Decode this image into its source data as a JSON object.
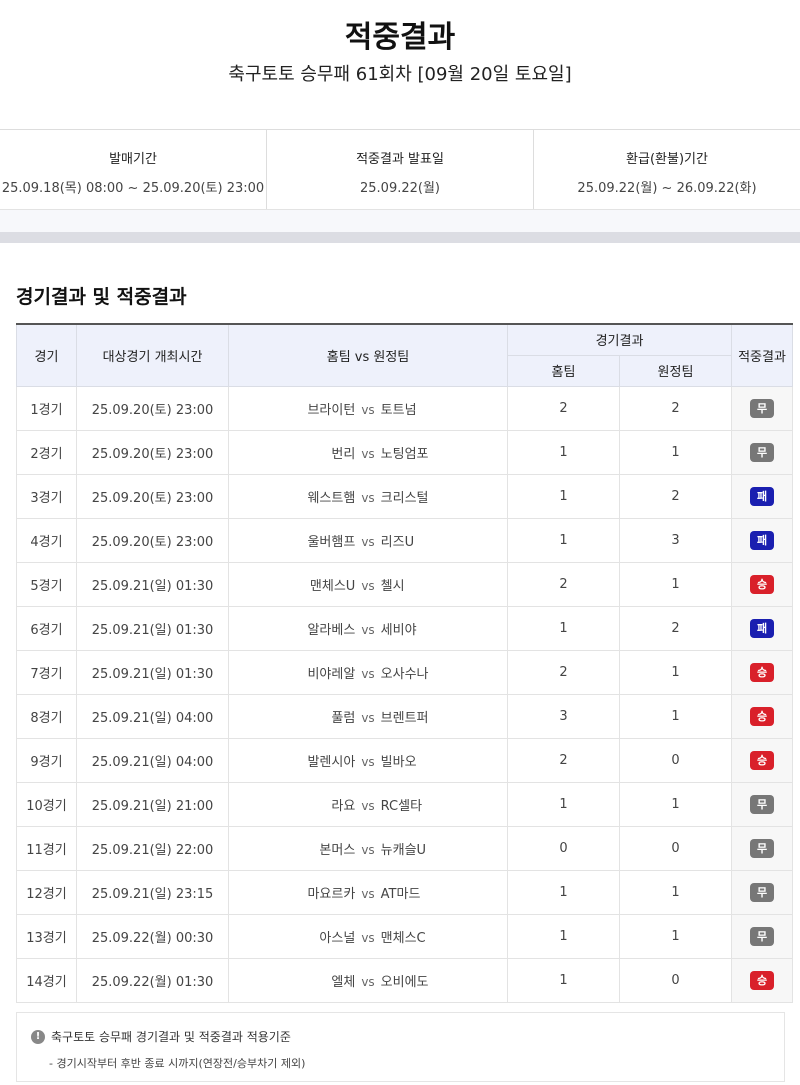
{
  "header": {
    "title": "적중결과",
    "subtitle": "축구토토 승무패 61회차 [09월 20일 토요일]"
  },
  "info": [
    {
      "label": "발매기간",
      "value": "25.09.18(목) 08:00 ~ 25.09.20(토) 23:00"
    },
    {
      "label": "적중결과 발표일",
      "value": "25.09.22(월)"
    },
    {
      "label": "환급(환불)기간",
      "value": "25.09.22(월) ~ 26.09.22(화)"
    }
  ],
  "section_title": "경기결과 및 적중결과",
  "table": {
    "headers": {
      "game": "경기",
      "time": "대상경기 개최시간",
      "teams": "홈팀 vs 원정팀",
      "result": "경기결과",
      "home": "홈팀",
      "away": "원정팀",
      "outcome": "적중결과"
    },
    "vs": "vs",
    "rows": [
      {
        "game": "1경기",
        "time": "25.09.20(토) 23:00",
        "home": "브라이턴",
        "away": "토트넘",
        "hs": "2",
        "as": "2",
        "outcome": "무"
      },
      {
        "game": "2경기",
        "time": "25.09.20(토) 23:00",
        "home": "번리",
        "away": "노팅엄포",
        "hs": "1",
        "as": "1",
        "outcome": "무"
      },
      {
        "game": "3경기",
        "time": "25.09.20(토) 23:00",
        "home": "웨스트햄",
        "away": "크리스털",
        "hs": "1",
        "as": "2",
        "outcome": "패"
      },
      {
        "game": "4경기",
        "time": "25.09.20(토) 23:00",
        "home": "울버햄프",
        "away": "리즈U",
        "hs": "1",
        "as": "3",
        "outcome": "패"
      },
      {
        "game": "5경기",
        "time": "25.09.21(일) 01:30",
        "home": "맨체스U",
        "away": "첼시",
        "hs": "2",
        "as": "1",
        "outcome": "승"
      },
      {
        "game": "6경기",
        "time": "25.09.21(일) 01:30",
        "home": "알라베스",
        "away": "세비야",
        "hs": "1",
        "as": "2",
        "outcome": "패"
      },
      {
        "game": "7경기",
        "time": "25.09.21(일) 01:30",
        "home": "비야레알",
        "away": "오사수나",
        "hs": "2",
        "as": "1",
        "outcome": "승"
      },
      {
        "game": "8경기",
        "time": "25.09.21(일) 04:00",
        "home": "풀럼",
        "away": "브렌트퍼",
        "hs": "3",
        "as": "1",
        "outcome": "승"
      },
      {
        "game": "9경기",
        "time": "25.09.21(일) 04:00",
        "home": "발렌시아",
        "away": "빌바오",
        "hs": "2",
        "as": "0",
        "outcome": "승"
      },
      {
        "game": "10경기",
        "time": "25.09.21(일) 21:00",
        "home": "라요",
        "away": "RC셀타",
        "hs": "1",
        "as": "1",
        "outcome": "무"
      },
      {
        "game": "11경기",
        "time": "25.09.21(일) 22:00",
        "home": "본머스",
        "away": "뉴캐슬U",
        "hs": "0",
        "as": "0",
        "outcome": "무"
      },
      {
        "game": "12경기",
        "time": "25.09.21(일) 23:15",
        "home": "마요르카",
        "away": "AT마드",
        "hs": "1",
        "as": "1",
        "outcome": "무"
      },
      {
        "game": "13경기",
        "time": "25.09.22(월) 00:30",
        "home": "아스널",
        "away": "맨체스C",
        "hs": "1",
        "as": "1",
        "outcome": "무"
      },
      {
        "game": "14경기",
        "time": "25.09.22(월) 01:30",
        "home": "엘체",
        "away": "오비에도",
        "hs": "1",
        "as": "0",
        "outcome": "승"
      }
    ]
  },
  "outcome_colors": {
    "승": "#d9202a",
    "무": "#777777",
    "패": "#1a1fb0"
  },
  "notice": {
    "icon": "exclamation-icon",
    "title": "축구토토 승무패 경기결과 및 적중결과 적용기준",
    "text": "- 경기시작부터 후반 종료 시까지(연장전/승부차기 제외)"
  }
}
